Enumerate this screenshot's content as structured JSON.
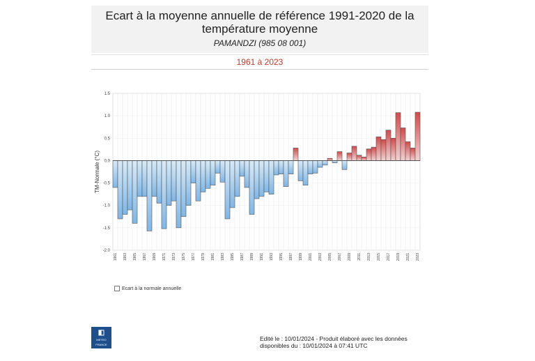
{
  "header": {
    "title_line1": "Ecart à la moyenne annuelle de référence 1991-2020 de la",
    "title_line2": "température moyenne",
    "station": "PAMANDZI (985 08 001)",
    "period": "1961 à 2023"
  },
  "legend": {
    "label": "Ecart à la normale annuelle"
  },
  "logo": {
    "mark": "◧",
    "text_line1": "METEO",
    "text_line2": "FRANCE"
  },
  "footer": {
    "line1": "Edité le : 10/01/2024 - Produit élaboré avec les données",
    "line2": "disponibles du : 10/01/2024 à 07:41 UTC"
  },
  "colors": {
    "negative_fill": "#7fb6e6",
    "negative_fill_light": "#d8ebf8",
    "positive_fill": "#d24a4a",
    "positive_fill_light": "#f3d2d2",
    "bar_stroke": "#555555"
  },
  "chart_data": {
    "type": "bar",
    "ylabel": "TM-Normale (°C)",
    "ylim": [
      -2.0,
      1.5
    ],
    "yticks": [
      "-2.0",
      "-1.5",
      "-1.0",
      "-0.5",
      "0.0",
      "0.5",
      "1.0",
      "1.5"
    ],
    "grid": true,
    "categories": [
      1961,
      1962,
      1963,
      1964,
      1965,
      1966,
      1967,
      1968,
      1969,
      1970,
      1971,
      1972,
      1973,
      1974,
      1975,
      1976,
      1977,
      1978,
      1979,
      1980,
      1981,
      1982,
      1983,
      1984,
      1985,
      1986,
      1987,
      1988,
      1989,
      1990,
      1991,
      1992,
      1993,
      1994,
      1995,
      1996,
      1997,
      1998,
      1999,
      2000,
      2001,
      2002,
      2003,
      2004,
      2005,
      2006,
      2007,
      2008,
      2009,
      2010,
      2011,
      2012,
      2013,
      2014,
      2015,
      2016,
      2017,
      2018,
      2019,
      2020,
      2021,
      2022,
      2023
    ],
    "xtick_labels": [
      "1961",
      "1963",
      "1965",
      "1967",
      "1969",
      "1971",
      "1973",
      "1975",
      "1977",
      "1979",
      "1981",
      "1983",
      "1985",
      "1987",
      "1989",
      "1991",
      "1993",
      "1995",
      "1997",
      "1999",
      "2001",
      "2003",
      "2005",
      "2007",
      "2009",
      "2011",
      "2013",
      "2015",
      "2017",
      "2019",
      "2021",
      "2023"
    ],
    "values": [
      -0.6,
      -1.3,
      -1.2,
      -1.1,
      -1.4,
      -0.8,
      -0.8,
      -1.57,
      -0.8,
      -0.95,
      -1.52,
      -1.0,
      -0.9,
      -1.5,
      -1.25,
      -1.0,
      -0.5,
      -0.9,
      -0.7,
      -0.62,
      -0.55,
      -0.28,
      -0.48,
      -1.3,
      -1.05,
      -0.8,
      -0.35,
      -0.6,
      -1.2,
      -0.85,
      -0.8,
      -0.7,
      -0.75,
      -0.32,
      -0.3,
      -0.58,
      -0.3,
      0.28,
      -0.45,
      -0.55,
      -0.3,
      -0.28,
      -0.15,
      -0.1,
      0.05,
      -0.05,
      0.2,
      -0.2,
      0.17,
      0.32,
      0.12,
      0.08,
      0.26,
      0.3,
      0.53,
      0.47,
      0.68,
      0.5,
      1.07,
      0.73,
      0.42,
      0.28,
      1.08
    ]
  }
}
